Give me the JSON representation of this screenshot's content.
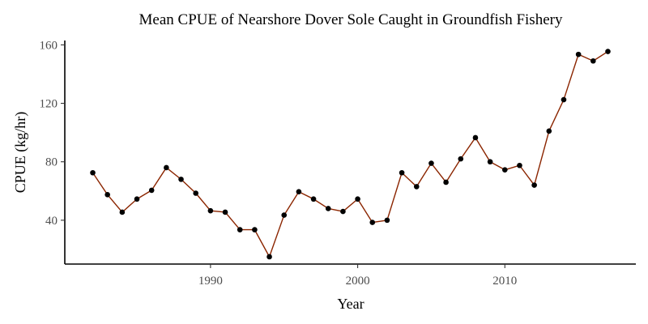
{
  "chart_data": {
    "type": "line",
    "title": "Mean CPUE of Nearshore Dover Sole Caught in Groundfish Fishery",
    "xlabel": "Year",
    "ylabel": "CPUE (kg/hr)",
    "xlim": [
      1980.1,
      2018.9
    ],
    "ylim": [
      10,
      163
    ],
    "xticks": [
      1990,
      2000,
      2010
    ],
    "yticks": [
      40,
      80,
      120,
      160
    ],
    "grid": false,
    "line_color": "#8B2500",
    "point_color": "#000000",
    "series": [
      {
        "x": [
          1982,
          1983,
          1984,
          1985,
          1986,
          1987,
          1988,
          1989,
          1990,
          1991,
          1992,
          1993,
          1994,
          1995,
          1996,
          1997,
          1998,
          1999,
          2000,
          2001,
          2002,
          2003,
          2004,
          2005,
          2006,
          2007,
          2008,
          2009,
          2010,
          2011,
          2012,
          2013,
          2014,
          2015,
          2016,
          2017
        ],
        "y": [
          72.5,
          57.5,
          45.5,
          54.5,
          60.5,
          76,
          68,
          58.5,
          46.5,
          45.5,
          33.5,
          33.5,
          15,
          43.5,
          59.5,
          54.5,
          48,
          46,
          54.5,
          38.5,
          40,
          72.5,
          63,
          79,
          66,
          82,
          96.5,
          80,
          74.5,
          77.5,
          64,
          101,
          122.5,
          153.5,
          149,
          155.5
        ]
      }
    ]
  }
}
